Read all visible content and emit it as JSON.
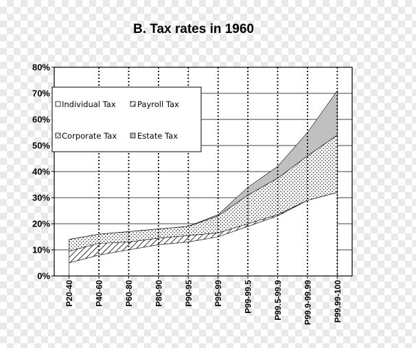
{
  "chart_data": {
    "type": "area",
    "title": "B. Tax rates in 1960",
    "xlabel": "",
    "ylabel": "",
    "ylim": [
      0,
      0.8
    ],
    "y_ticks": [
      "0%",
      "10%",
      "20%",
      "30%",
      "40%",
      "50%",
      "60%",
      "70%",
      "80%"
    ],
    "categories": [
      "P20-40",
      "P40-60",
      "P60-80",
      "P80-90",
      "P90-95",
      "P95-99",
      "P99-99.5",
      "P99.5-99.9",
      "P99.9-99.99",
      "P99.99-100"
    ],
    "stacked": true,
    "grid": true,
    "legend_position": "upper-left",
    "series": [
      {
        "name": "Individual Tax",
        "fill": "white",
        "values": [
          0.05,
          0.08,
          0.1,
          0.12,
          0.13,
          0.15,
          0.19,
          0.23,
          0.29,
          0.32
        ]
      },
      {
        "name": "Payroll Tax",
        "fill": "diagonal-hatch",
        "values": [
          0.045,
          0.045,
          0.03,
          0.025,
          0.025,
          0.015,
          0.01,
          0.005,
          0.0,
          0.0
        ]
      },
      {
        "name": "Corporate Tax",
        "fill": "dotted",
        "values": [
          0.045,
          0.035,
          0.04,
          0.035,
          0.035,
          0.065,
          0.11,
          0.14,
          0.17,
          0.22
        ]
      },
      {
        "name": "Estate Tax",
        "fill": "#c0c0c0",
        "values": [
          0.0,
          0.0,
          0.0,
          0.0,
          0.0,
          0.005,
          0.03,
          0.045,
          0.09,
          0.17
        ]
      }
    ]
  }
}
